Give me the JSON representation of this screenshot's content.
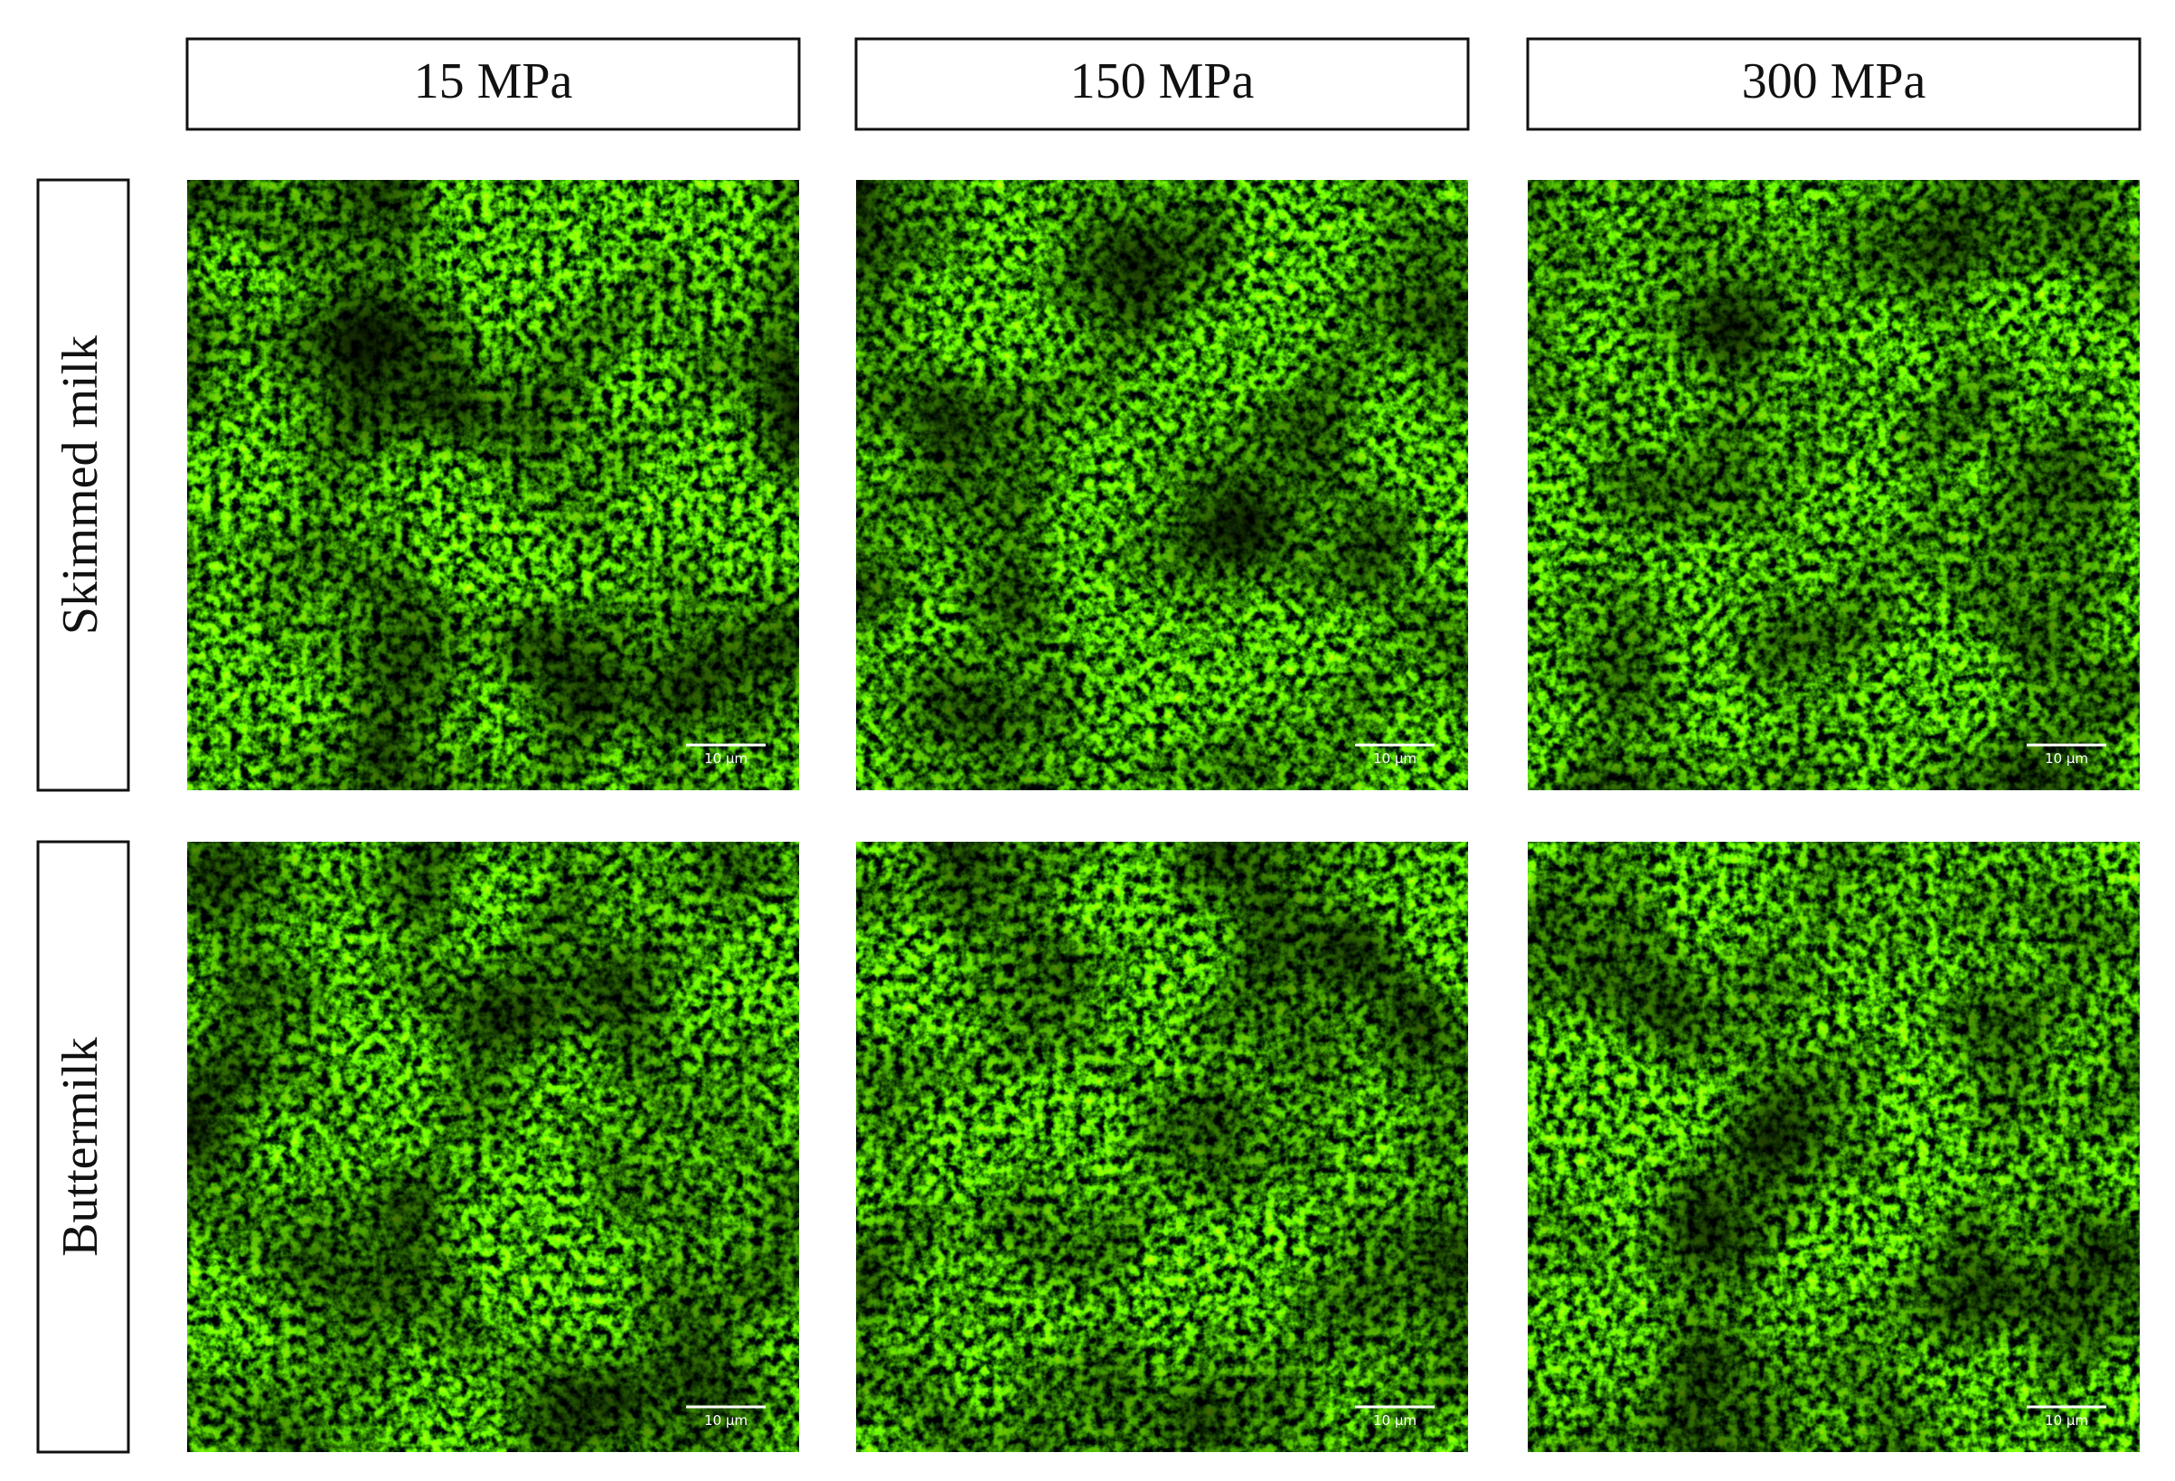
{
  "columns": [
    "15 MPa",
    "150 MPa",
    "300 MPa"
  ],
  "rows": [
    {
      "label": "Skimmed milk",
      "panels": [
        {
          "scale_bar": "10 μm"
        },
        {
          "scale_bar": "10 μm"
        },
        {
          "scale_bar": "10 μm"
        }
      ]
    },
    {
      "label": "Buttermilk",
      "panels": [
        {
          "scale_bar": "10 μm"
        },
        {
          "scale_bar": "10 μm"
        },
        {
          "scale_bar": "10 μm"
        }
      ]
    }
  ]
}
